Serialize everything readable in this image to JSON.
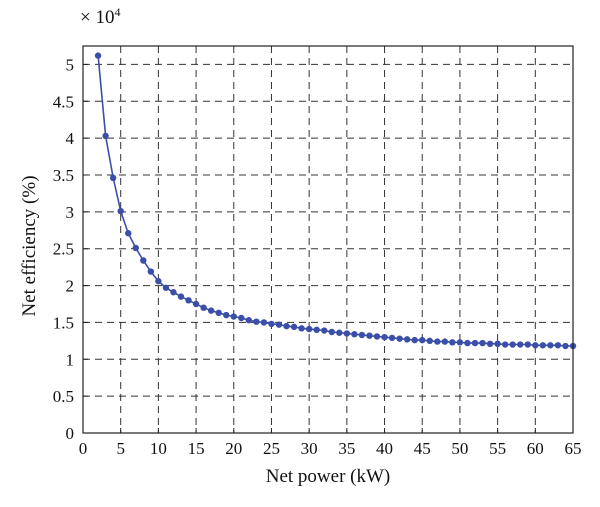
{
  "chart_data": {
    "type": "line",
    "title": "",
    "xlabel": "Net power (kW)",
    "ylabel": "Net efficiency (%)",
    "y_multiplier_label": "× 10",
    "y_multiplier_exponent": "4",
    "xlim": [
      0,
      65
    ],
    "ylim": [
      0,
      5.25
    ],
    "x_ticks": [
      0,
      5,
      10,
      15,
      20,
      25,
      30,
      35,
      40,
      45,
      50,
      55,
      60,
      65
    ],
    "x_tick_labels": [
      "0",
      "5",
      "10",
      "15",
      "20",
      "25",
      "30",
      "35",
      "40",
      "45",
      "50",
      "55",
      "60",
      "65"
    ],
    "y_ticks": [
      0,
      0.5,
      1,
      1.5,
      2,
      2.5,
      3,
      3.5,
      4,
      4.5,
      5
    ],
    "y_tick_labels": [
      "0",
      "0.5",
      "1",
      "1.5",
      "2",
      "2.5",
      "3",
      "3.5",
      "4",
      "4.5",
      "5"
    ],
    "grid": true,
    "line_color": "#3b4fa8",
    "series": [
      {
        "x": [
          2,
          3,
          4,
          5,
          6,
          7,
          8,
          9,
          10,
          11,
          12,
          13,
          14,
          15,
          16,
          17,
          18,
          19,
          20,
          21,
          22,
          23,
          24,
          25,
          26,
          27,
          28,
          29,
          30,
          31,
          32,
          33,
          34,
          35,
          36,
          37,
          38,
          39,
          40,
          41,
          42,
          43,
          44,
          45,
          46,
          47,
          48,
          49,
          50,
          51,
          52,
          53,
          54,
          55,
          56,
          57,
          58,
          59,
          60,
          61,
          62,
          63,
          64,
          65
        ],
        "y": [
          5.12,
          4.03,
          3.46,
          3.01,
          2.71,
          2.51,
          2.34,
          2.19,
          2.06,
          1.97,
          1.91,
          1.85,
          1.8,
          1.75,
          1.7,
          1.66,
          1.63,
          1.6,
          1.58,
          1.56,
          1.53,
          1.51,
          1.5,
          1.48,
          1.47,
          1.45,
          1.44,
          1.42,
          1.41,
          1.4,
          1.39,
          1.37,
          1.36,
          1.35,
          1.34,
          1.33,
          1.32,
          1.31,
          1.3,
          1.29,
          1.28,
          1.27,
          1.26,
          1.26,
          1.25,
          1.24,
          1.24,
          1.23,
          1.23,
          1.22,
          1.22,
          1.22,
          1.21,
          1.21,
          1.2,
          1.2,
          1.2,
          1.2,
          1.19,
          1.19,
          1.19,
          1.19,
          1.18,
          1.18
        ]
      }
    ]
  }
}
